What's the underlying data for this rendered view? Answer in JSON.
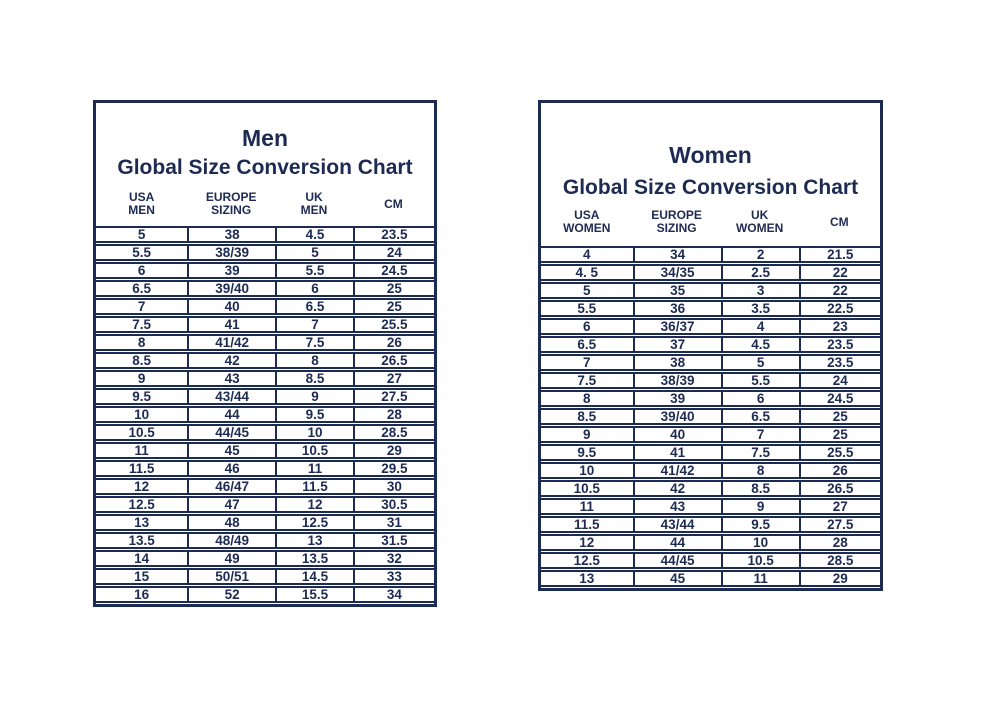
{
  "colors": {
    "navy": "#1d2a52",
    "background": "#ffffff"
  },
  "charts": [
    {
      "id": "men",
      "title": "Men",
      "subtitle": "Global Size Conversion Chart",
      "columns": [
        [
          "USA",
          "MEN"
        ],
        [
          "EUROPE",
          "SIZING"
        ],
        [
          "UK",
          "MEN"
        ],
        [
          "CM"
        ]
      ],
      "rows": [
        [
          "5",
          "38",
          "4.5",
          "23.5"
        ],
        [
          "5.5",
          "38/39",
          "5",
          "24"
        ],
        [
          "6",
          "39",
          "5.5",
          "24.5"
        ],
        [
          "6.5",
          "39/40",
          "6",
          "25"
        ],
        [
          "7",
          "40",
          "6.5",
          "25"
        ],
        [
          "7.5",
          "41",
          "7",
          "25.5"
        ],
        [
          "8",
          "41/42",
          "7.5",
          "26"
        ],
        [
          "8.5",
          "42",
          "8",
          "26.5"
        ],
        [
          "9",
          "43",
          "8.5",
          "27"
        ],
        [
          "9.5",
          "43/44",
          "9",
          "27.5"
        ],
        [
          "10",
          "44",
          "9.5",
          "28"
        ],
        [
          "10.5",
          "44/45",
          "10",
          "28.5"
        ],
        [
          "11",
          "45",
          "10.5",
          "29"
        ],
        [
          "11.5",
          "46",
          "11",
          "29.5"
        ],
        [
          "12",
          "46/47",
          "11.5",
          "30"
        ],
        [
          "12.5",
          "47",
          "12",
          "30.5"
        ],
        [
          "13",
          "48",
          "12.5",
          "31"
        ],
        [
          "13.5",
          "48/49",
          "13",
          "31.5"
        ],
        [
          "14",
          "49",
          "13.5",
          "32"
        ],
        [
          "15",
          "50/51",
          "14.5",
          "33"
        ],
        [
          "16",
          "52",
          "15.5",
          "34"
        ]
      ]
    },
    {
      "id": "women",
      "title": "Women",
      "subtitle": "Global Size Conversion Chart",
      "columns": [
        [
          "USA",
          "WOMEN"
        ],
        [
          "EUROPE",
          "SIZING"
        ],
        [
          "UK",
          "WOMEN"
        ],
        [
          "CM"
        ]
      ],
      "rows": [
        [
          "4",
          "34",
          "2",
          "21.5"
        ],
        [
          "4. 5",
          "34/35",
          "2.5",
          "22"
        ],
        [
          "5",
          "35",
          "3",
          "22"
        ],
        [
          "5.5",
          "36",
          "3.5",
          "22.5"
        ],
        [
          "6",
          "36/37",
          "4",
          "23"
        ],
        [
          "6.5",
          "37",
          "4.5",
          "23.5"
        ],
        [
          "7",
          "38",
          "5",
          "23.5"
        ],
        [
          "7.5",
          "38/39",
          "5.5",
          "24"
        ],
        [
          "8",
          "39",
          "6",
          "24.5"
        ],
        [
          "8.5",
          "39/40",
          "6.5",
          "25"
        ],
        [
          "9",
          "40",
          "7",
          "25"
        ],
        [
          "9.5",
          "41",
          "7.5",
          "25.5"
        ],
        [
          "10",
          "41/42",
          "8",
          "26"
        ],
        [
          "10.5",
          "42",
          "8.5",
          "26.5"
        ],
        [
          "11",
          "43",
          "9",
          "27"
        ],
        [
          "11.5",
          "43/44",
          "9.5",
          "27.5"
        ],
        [
          "12",
          "44",
          "10",
          "28"
        ],
        [
          "12.5",
          "44/45",
          "10.5",
          "28.5"
        ],
        [
          "13",
          "45",
          "11",
          "29"
        ]
      ]
    }
  ]
}
